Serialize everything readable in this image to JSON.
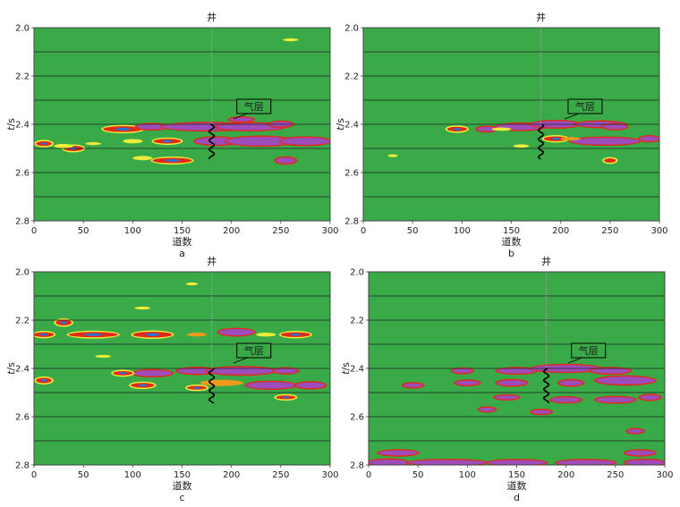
{
  "chart_data": [
    {
      "type": "heatmap",
      "panel_label": "a",
      "well_label": "井",
      "annotation": "气层",
      "xlabel": "道数",
      "ylabel_var": "t",
      "ylabel_unit": "/s",
      "xlim": [
        0,
        300
      ],
      "ylim": [
        2.0,
        2.8
      ],
      "xticks": [
        0,
        50,
        100,
        150,
        200,
        250,
        300
      ],
      "yticks": [
        "2.0",
        "2.2",
        "2.4",
        "2.6",
        "2.8"
      ],
      "well_trace": 180,
      "gas_box": {
        "x": [
          76,
          265
        ],
        "t": [
          2.37,
          2.43
        ]
      },
      "label_trace": 220
    },
    {
      "type": "heatmap",
      "panel_label": "b",
      "well_label": "井",
      "annotation": "气层",
      "xlabel": "道数",
      "ylabel_var": "t",
      "ylabel_unit": "/s",
      "xlim": [
        0,
        300
      ],
      "ylim": [
        2.0,
        2.8
      ],
      "xticks": [
        0,
        50,
        100,
        150,
        200,
        250,
        300
      ],
      "yticks": [
        "2.0",
        "2.2",
        "2.4",
        "2.6",
        "2.8"
      ],
      "well_trace": 180,
      "gas_box": {
        "x": [
          82,
          265
        ],
        "t": [
          2.37,
          2.43
        ]
      },
      "label_trace": 222
    },
    {
      "type": "heatmap",
      "panel_label": "c",
      "well_label": "井",
      "annotation": "气层",
      "xlabel": "道数",
      "ylabel_var": "t",
      "ylabel_unit": "/s",
      "xlim": [
        0,
        300
      ],
      "ylim": [
        2.0,
        2.8
      ],
      "xticks": [
        0,
        50,
        100,
        150,
        200,
        250,
        300
      ],
      "yticks": [
        "2.0",
        "2.2",
        "2.4",
        "2.6",
        "2.8"
      ],
      "well_trace": 180,
      "gas_box": {
        "x": [
          75,
          265
        ],
        "t": [
          2.37,
          2.43
        ]
      },
      "label_trace": 220
    },
    {
      "type": "heatmap",
      "panel_label": "d",
      "well_label": "井",
      "annotation": "气层",
      "xlabel": "道数",
      "ylabel_var": "t",
      "ylabel_unit": "/s",
      "xlim": [
        0,
        300
      ],
      "ylim": [
        2.0,
        2.8
      ],
      "xticks": [
        0,
        50,
        100,
        150,
        200,
        250,
        300
      ],
      "yticks": [
        "2.0",
        "2.2",
        "2.4",
        "2.6",
        "2.8"
      ],
      "well_trace": 180,
      "gas_box": {
        "x": [
          82,
          275
        ],
        "t": [
          2.37,
          2.43
        ]
      },
      "label_trace": 220
    }
  ],
  "colors": {
    "background": "#3aa948",
    "purple": "#9d4db9",
    "red": "#e02a1a",
    "orange": "#f09a1c",
    "yellow": "#ecec3a",
    "blue": "#2a72d8",
    "cyan": "#4fc3e8",
    "black": "#000000",
    "gridline": "#222222"
  }
}
